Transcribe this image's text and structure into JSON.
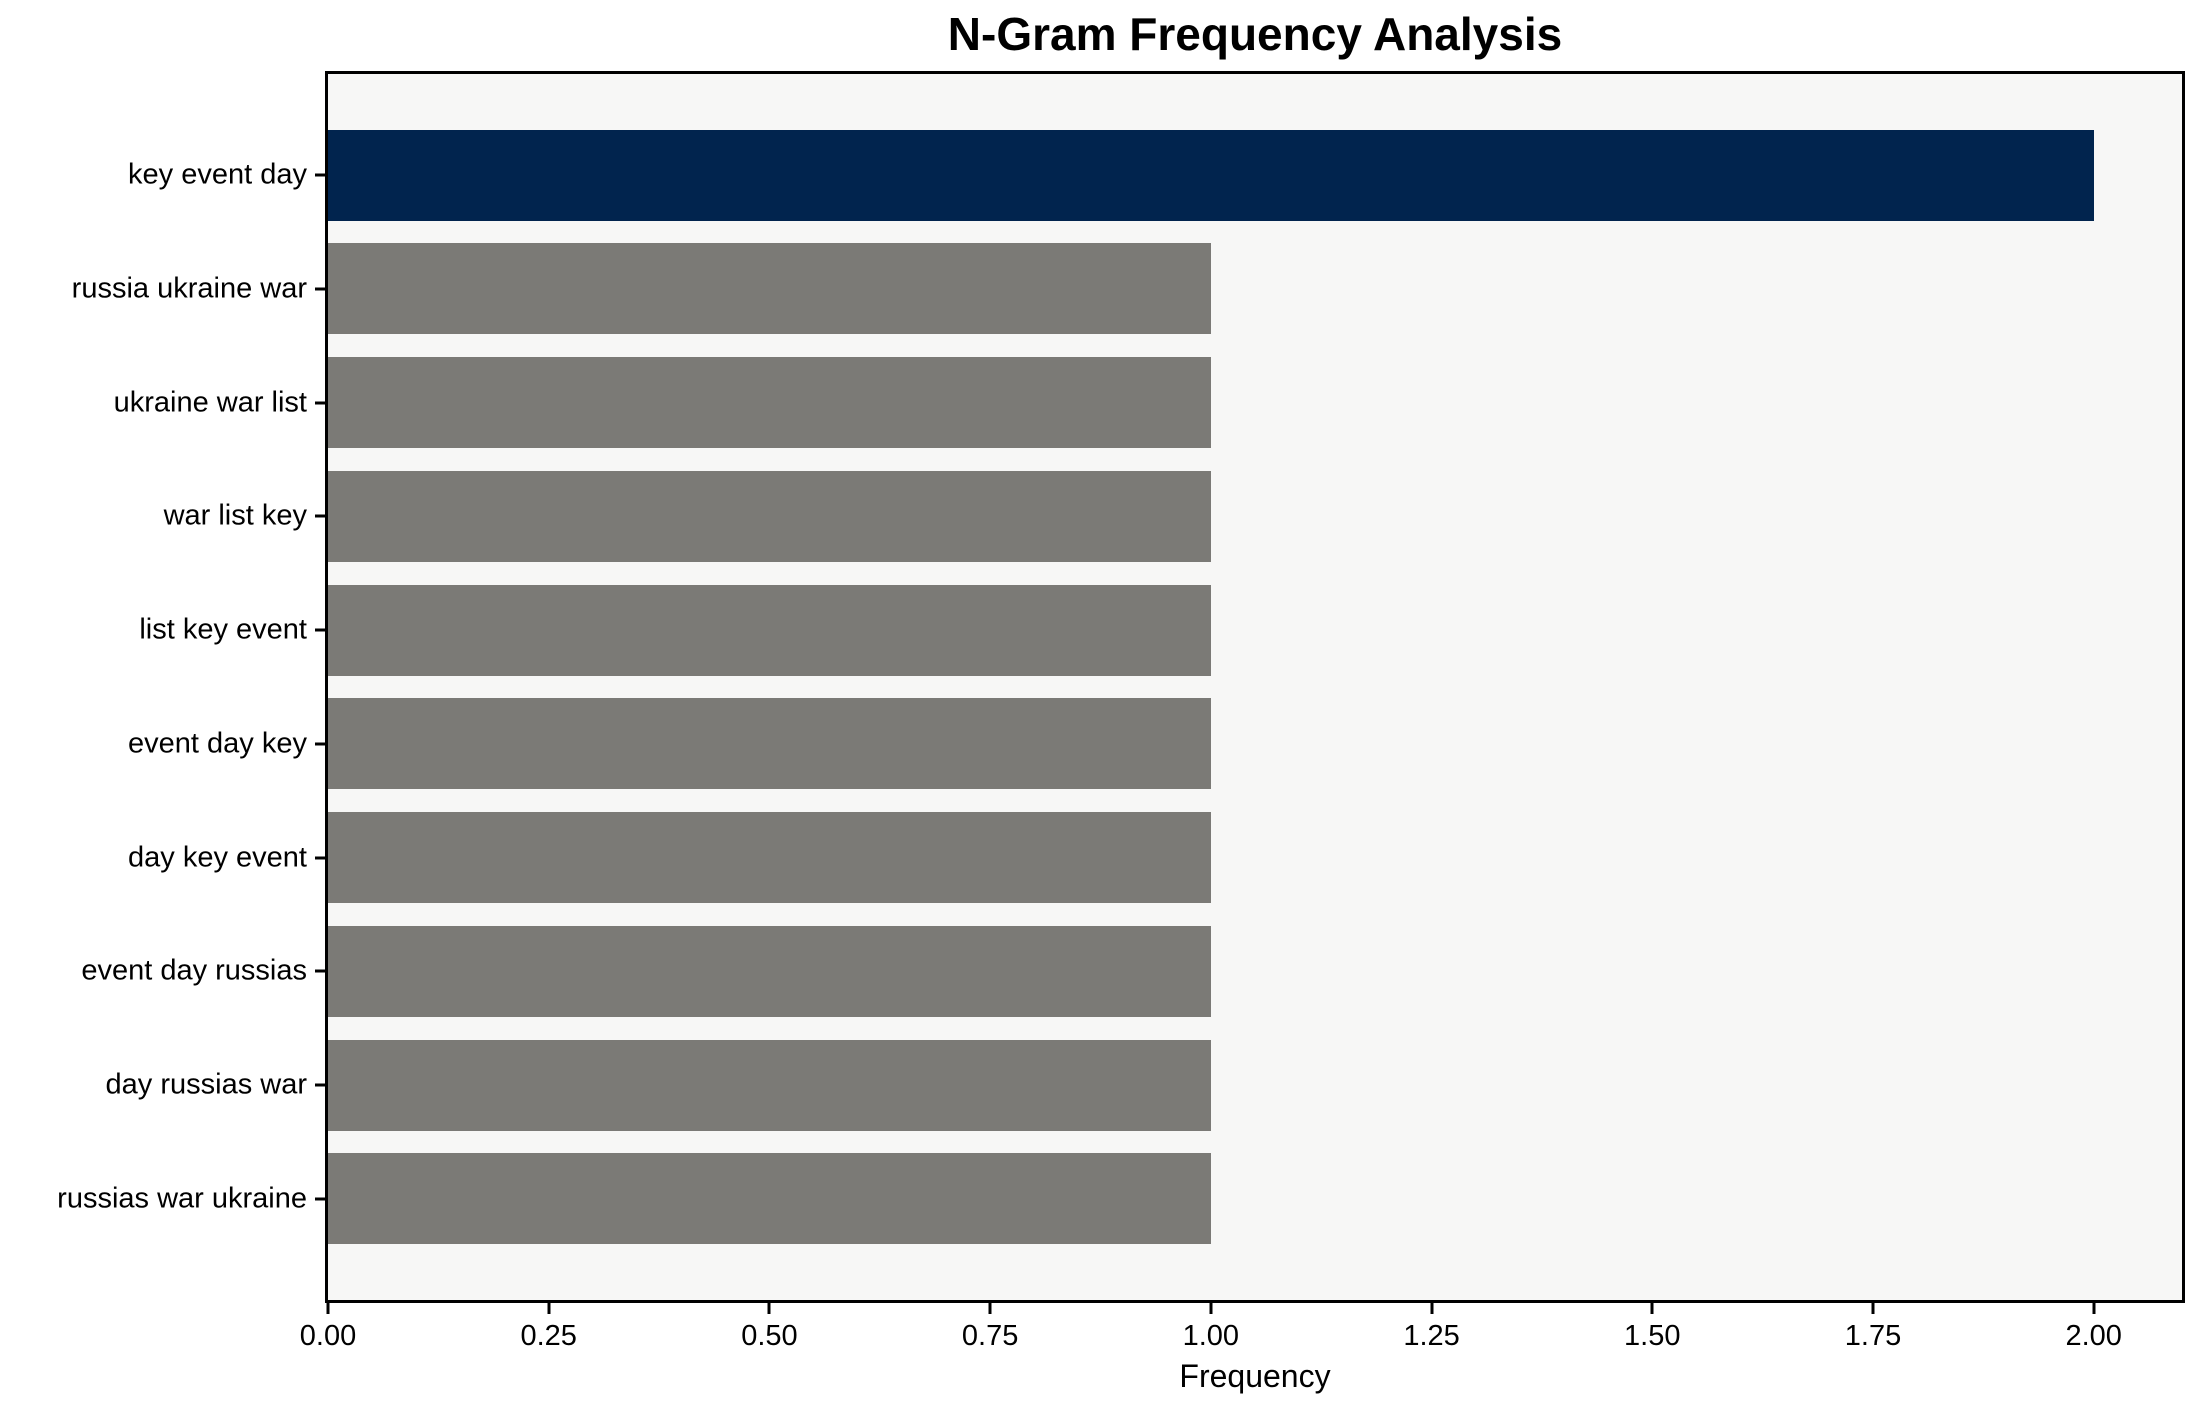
{
  "chart_data": {
    "type": "bar",
    "orientation": "horizontal",
    "title": "N-Gram Frequency Analysis",
    "xlabel": "Frequency",
    "ylabel": "",
    "categories": [
      "key event day",
      "russia ukraine war",
      "ukraine war list",
      "war list key",
      "list key event",
      "event day key",
      "day key event",
      "event day russias",
      "day russias war",
      "russias war ukraine"
    ],
    "values": [
      2,
      1,
      1,
      1,
      1,
      1,
      1,
      1,
      1,
      1
    ],
    "bar_colors": [
      "#01244E",
      "#7B7A76",
      "#7B7A76",
      "#7B7A76",
      "#7B7A76",
      "#7B7A76",
      "#7B7A76",
      "#7B7A76",
      "#7B7A76",
      "#7B7A76"
    ],
    "xlim": [
      0,
      2.1
    ],
    "xtick_labels": [
      "0.00",
      "0.25",
      "0.50",
      "0.75",
      "1.00",
      "1.25",
      "1.50",
      "1.75",
      "2.00"
    ],
    "xtick_values": [
      0,
      0.25,
      0.5,
      0.75,
      1.0,
      1.25,
      1.5,
      1.75,
      2.0
    ],
    "grid": false,
    "legend": null,
    "colors": {
      "highlight_bar": "#01244E",
      "default_bar": "#7B7A76",
      "plot_background": "#F7F7F6",
      "figure_background": "#FFFFFF",
      "spine": "#000000",
      "text": "#000000"
    }
  }
}
